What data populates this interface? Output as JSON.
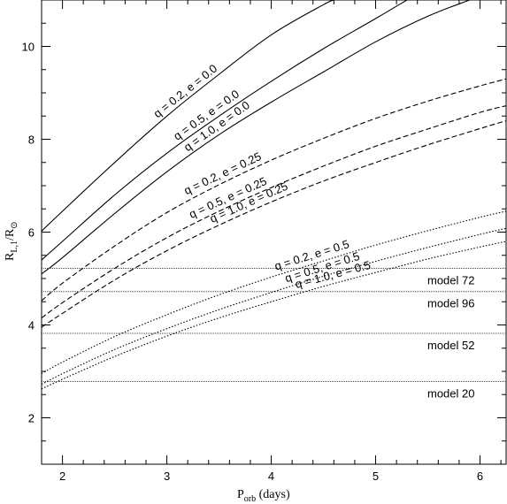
{
  "chart_data": {
    "type": "line",
    "xlabel": "P",
    "xlabel_sub": "orb",
    "xlabel_suffix": " (days)",
    "ylabel": "R",
    "ylabel_sub": "L,1",
    "ylabel_suffix": "/R",
    "ylabel_sun_sub": "⊙",
    "xlim": [
      1.8,
      6.25
    ],
    "ylim": [
      1.0,
      11.0
    ],
    "x_ticks": [
      2,
      3,
      4,
      5,
      6
    ],
    "y_ticks": [
      2,
      4,
      6,
      8,
      10
    ],
    "grid": false,
    "series": [
      {
        "name": "q = 0.2, e = 0.0",
        "style": "solid",
        "x": [
          1.8,
          2.0,
          2.5,
          3.0,
          3.5,
          4.0,
          4.5,
          4.6
        ],
        "y": [
          6.02,
          6.45,
          7.5,
          8.5,
          9.4,
          10.25,
          10.9,
          11.0
        ]
      },
      {
        "name": "q = 0.5, e = 0.0",
        "style": "solid",
        "x": [
          1.8,
          2.0,
          2.5,
          3.0,
          3.5,
          4.0,
          4.5,
          5.0,
          5.3
        ],
        "y": [
          5.4,
          5.8,
          6.8,
          7.7,
          8.5,
          9.25,
          9.95,
          10.6,
          11.0
        ]
      },
      {
        "name": "q = 1.0, e = 0.0",
        "style": "solid",
        "x": [
          1.8,
          2.0,
          2.5,
          3.0,
          3.5,
          4.0,
          4.5,
          5.0,
          5.5,
          5.9
        ],
        "y": [
          5.1,
          5.45,
          6.4,
          7.3,
          8.1,
          8.8,
          9.45,
          10.1,
          10.65,
          11.0
        ]
      },
      {
        "name": "q = 0.2, e = 0.25",
        "style": "dashed",
        "x": [
          1.8,
          2.0,
          2.5,
          3.0,
          3.5,
          4.0,
          4.5,
          5.0,
          5.5,
          6.0,
          6.25
        ],
        "y": [
          4.52,
          4.9,
          5.7,
          6.42,
          7.02,
          7.55,
          8.02,
          8.45,
          8.82,
          9.15,
          9.3
        ]
      },
      {
        "name": "q = 0.5, e = 0.25",
        "style": "dashed",
        "x": [
          1.8,
          2.0,
          2.5,
          3.0,
          3.5,
          4.0,
          4.5,
          5.0,
          5.5,
          6.0,
          6.25
        ],
        "y": [
          4.15,
          4.48,
          5.22,
          5.88,
          6.45,
          6.96,
          7.42,
          7.85,
          8.22,
          8.58,
          8.72
        ]
      },
      {
        "name": "q = 1.0, e = 0.25",
        "style": "dashed",
        "x": [
          1.8,
          2.0,
          2.5,
          3.0,
          3.5,
          4.0,
          4.5,
          5.0,
          5.5,
          6.0,
          6.25
        ],
        "y": [
          3.95,
          4.25,
          4.97,
          5.6,
          6.15,
          6.65,
          7.1,
          7.5,
          7.88,
          8.23,
          8.4
        ]
      },
      {
        "name": "q = 0.2, e = 0.5",
        "style": "dotted",
        "x": [
          1.8,
          2.0,
          2.5,
          3.0,
          3.5,
          4.0,
          4.5,
          5.0,
          5.5,
          6.0,
          6.25
        ],
        "y": [
          2.95,
          3.2,
          3.75,
          4.22,
          4.65,
          5.03,
          5.38,
          5.72,
          6.03,
          6.32,
          6.45
        ]
      },
      {
        "name": "q = 0.5, e = 0.5",
        "style": "dotted",
        "x": [
          1.8,
          2.0,
          2.5,
          3.0,
          3.5,
          4.0,
          4.5,
          5.0,
          5.5,
          6.0,
          6.25
        ],
        "y": [
          2.72,
          2.95,
          3.47,
          3.92,
          4.33,
          4.7,
          5.05,
          5.37,
          5.67,
          5.95,
          6.08
        ]
      },
      {
        "name": "q = 1.0, e = 0.5",
        "style": "dotted",
        "x": [
          1.8,
          2.0,
          2.5,
          3.0,
          3.5,
          4.0,
          4.5,
          5.0,
          5.5,
          6.0,
          6.25
        ],
        "y": [
          2.62,
          2.83,
          3.32,
          3.76,
          4.15,
          4.5,
          4.83,
          5.13,
          5.42,
          5.68,
          5.8
        ]
      }
    ],
    "reference_lines": [
      {
        "name": "model 72",
        "y": 5.22
      },
      {
        "name": "model 96",
        "y": 4.72
      },
      {
        "name": "model 52",
        "y": 3.82
      },
      {
        "name": "model 20",
        "y": 2.78
      }
    ]
  }
}
